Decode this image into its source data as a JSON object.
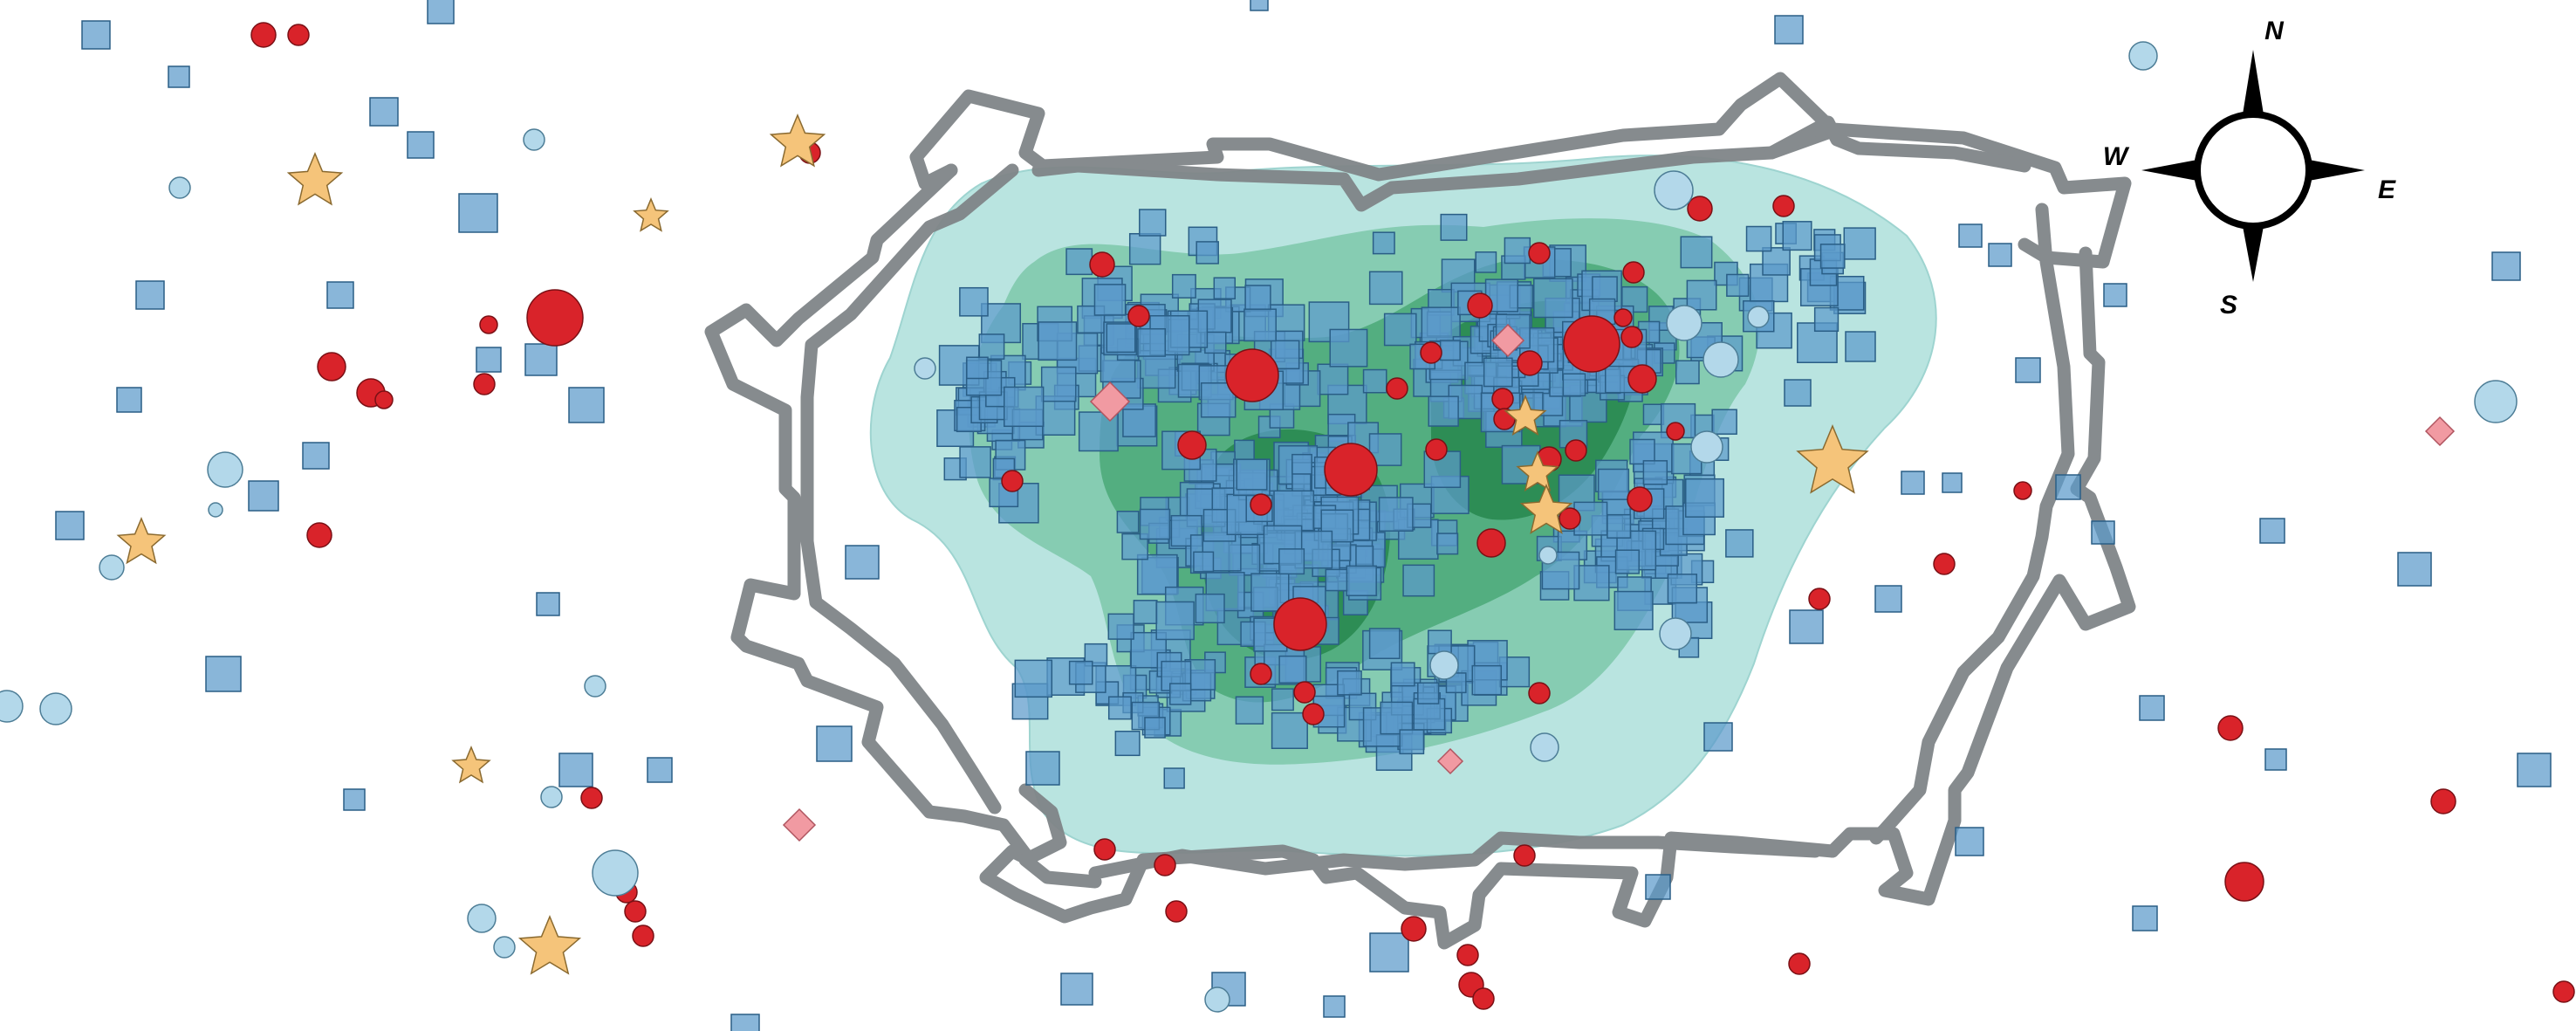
{
  "map": {
    "type": "archaeological-distribution-map",
    "palette": {
      "background": "#ffffff",
      "density_levels": [
        "#b9e4e0",
        "#86ccb2",
        "#53ae80",
        "#2d8d55"
      ],
      "wall": "#808588",
      "square_finds": "#5b9acb",
      "square_stroke": "#2a5e86",
      "red_circle_finds": "#d9232a",
      "light_circle_finds": "#b3d8ea",
      "star_finds": "#f5c47a",
      "diamond_finds": "#f19aa2"
    },
    "symbols": [
      {
        "name": "square",
        "icon": "square-marker"
      },
      {
        "name": "red-circle",
        "icon": "circle-marker"
      },
      {
        "name": "light-circle",
        "icon": "circle-marker"
      },
      {
        "name": "star",
        "icon": "star-marker"
      },
      {
        "name": "diamond",
        "icon": "diamond-marker"
      }
    ]
  },
  "compass": {
    "icon": "compass-rose-icon",
    "north": "N",
    "east": "E",
    "south": "S",
    "west": "W"
  }
}
